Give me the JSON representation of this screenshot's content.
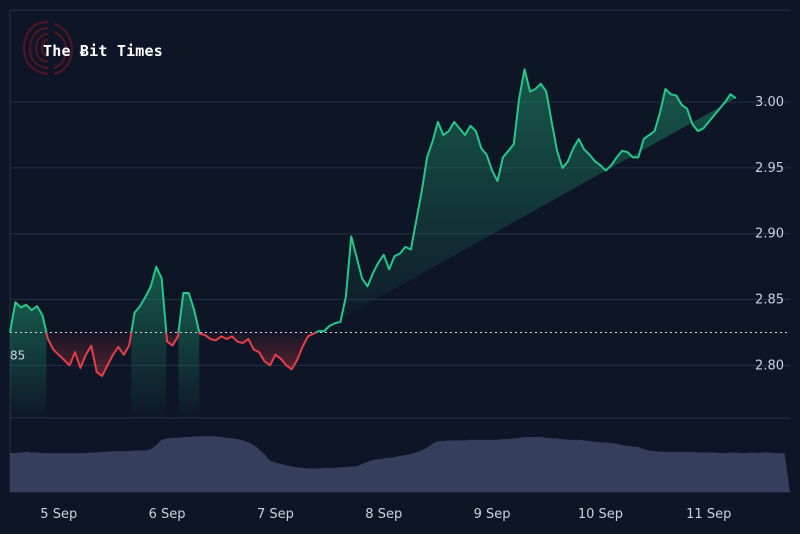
{
  "watermark": {
    "text": "The Ƀit Times"
  },
  "chart_data": {
    "type": "line",
    "title": "",
    "xlabel": "",
    "ylabel": "",
    "baseline": 2.825,
    "baseline_label": "85",
    "ylim": [
      2.76,
      3.07
    ],
    "y_ticks": [
      {
        "value": 2.8,
        "label": "2.80"
      },
      {
        "value": 2.85,
        "label": "2.85"
      },
      {
        "value": 2.9,
        "label": "2.90"
      },
      {
        "value": 2.95,
        "label": "2.95"
      },
      {
        "value": 3.0,
        "label": "3.00"
      }
    ],
    "x_ticks": [
      "5 Sep",
      "6 Sep",
      "7 Sep",
      "8 Sep",
      "9 Sep",
      "10 Sep",
      "11 Sep"
    ],
    "xlim": [
      4.55,
      11.75
    ],
    "colors": {
      "up": "#26c88a",
      "down": "#e5404a",
      "volume": "#3a4263",
      "grid": "#253047",
      "background": "#0e1526"
    },
    "series": [
      {
        "x": [
          4.55,
          4.6,
          4.65,
          4.7,
          4.75,
          4.8,
          4.85,
          4.9,
          4.95,
          5.0,
          5.05,
          5.1,
          5.15,
          5.2,
          5.25,
          5.3,
          5.35,
          5.4,
          5.45,
          5.5,
          5.55,
          5.6,
          5.65,
          5.7,
          5.75,
          5.8,
          5.85,
          5.9,
          5.95,
          6.0,
          6.05,
          6.1,
          6.15,
          6.2,
          6.25,
          6.3,
          6.35,
          6.4,
          6.45,
          6.5,
          6.55,
          6.6,
          6.65,
          6.7,
          6.75,
          6.8,
          6.85,
          6.9,
          6.95,
          7.0,
          7.05,
          7.1,
          7.15,
          7.2,
          7.25,
          7.3,
          7.35,
          7.4,
          7.45,
          7.5,
          7.55,
          7.6,
          7.65,
          7.7,
          7.75,
          7.8,
          7.85,
          7.9,
          7.95,
          8.0,
          8.05,
          8.1,
          8.15,
          8.2,
          8.25,
          8.3,
          8.35,
          8.4,
          8.45,
          8.5,
          8.55,
          8.6,
          8.65,
          8.7,
          8.75,
          8.8,
          8.85,
          8.9,
          8.95,
          9.0,
          9.05,
          9.1,
          9.15,
          9.2,
          9.25,
          9.3,
          9.35,
          9.4,
          9.45,
          9.5,
          9.55,
          9.6,
          9.65,
          9.7,
          9.75,
          9.8,
          9.85,
          9.9,
          9.95,
          10.0,
          10.05,
          10.1,
          10.15,
          10.2,
          10.25,
          10.3,
          10.35,
          10.4,
          10.45,
          10.5,
          10.55,
          10.6,
          10.65,
          10.7,
          10.75,
          10.8,
          10.85,
          10.9,
          10.95,
          11.0,
          11.05,
          11.1,
          11.15,
          11.2,
          11.25,
          11.3,
          11.35,
          11.4,
          11.45,
          11.5,
          11.55,
          11.6,
          11.65,
          11.7,
          11.75
        ],
        "price": [
          2.825,
          2.848,
          2.844,
          2.846,
          2.842,
          2.845,
          2.838,
          2.82,
          2.812,
          2.808,
          2.804,
          2.8,
          2.81,
          2.798,
          2.808,
          2.815,
          2.795,
          2.792,
          2.8,
          2.808,
          2.814,
          2.808,
          2.815,
          2.84,
          2.845,
          2.852,
          2.86,
          2.875,
          2.866,
          2.818,
          2.815,
          2.822,
          2.855,
          2.855,
          2.842,
          2.824,
          2.823,
          2.82,
          2.819,
          2.822,
          2.82,
          2.822,
          2.818,
          2.817,
          2.82,
          2.812,
          2.81,
          2.803,
          2.8,
          2.808,
          2.805,
          2.8,
          2.797,
          2.804,
          2.814,
          2.822,
          2.824,
          2.826,
          2.826,
          2.83,
          2.832,
          2.833,
          2.852,
          2.898,
          2.882,
          2.866,
          2.86,
          2.87,
          2.878,
          2.884,
          2.873,
          2.883,
          2.885,
          2.89,
          2.888,
          2.91,
          2.932,
          2.958,
          2.97,
          2.985,
          2.975,
          2.978,
          2.985,
          2.98,
          2.975,
          2.982,
          2.978,
          2.965,
          2.96,
          2.948,
          2.94,
          2.958,
          2.963,
          2.968,
          3.003,
          3.025,
          3.008,
          3.01,
          3.014,
          3.008,
          2.985,
          2.963,
          2.95,
          2.955,
          2.965,
          2.972,
          2.964,
          2.96,
          2.955,
          2.952,
          2.948,
          2.952,
          2.958,
          2.963,
          2.962,
          2.958,
          2.958,
          2.972,
          2.975,
          2.978,
          2.992,
          3.01,
          3.006,
          3.005,
          2.998,
          2.995,
          2.983,
          2.978,
          2.98,
          2.985,
          2.99,
          2.995,
          3.0,
          3.006,
          3.003
        ]
      }
    ],
    "volume": [
      0.58,
      0.58,
      0.59,
      0.6,
      0.59,
      0.59,
      0.58,
      0.58,
      0.58,
      0.58,
      0.58,
      0.58,
      0.58,
      0.58,
      0.58,
      0.59,
      0.59,
      0.6,
      0.6,
      0.61,
      0.61,
      0.61,
      0.61,
      0.62,
      0.62,
      0.62,
      0.64,
      0.7,
      0.78,
      0.8,
      0.81,
      0.81,
      0.82,
      0.82,
      0.83,
      0.83,
      0.83,
      0.83,
      0.83,
      0.82,
      0.81,
      0.8,
      0.79,
      0.77,
      0.74,
      0.7,
      0.64,
      0.56,
      0.47,
      0.44,
      0.42,
      0.4,
      0.38,
      0.37,
      0.36,
      0.35,
      0.35,
      0.35,
      0.36,
      0.36,
      0.36,
      0.37,
      0.37,
      0.38,
      0.38,
      0.42,
      0.45,
      0.48,
      0.49,
      0.5,
      0.51,
      0.52,
      0.54,
      0.55,
      0.57,
      0.59,
      0.62,
      0.66,
      0.72,
      0.76,
      0.76,
      0.77,
      0.77,
      0.77,
      0.77,
      0.78,
      0.78,
      0.78,
      0.78,
      0.78,
      0.78,
      0.79,
      0.79,
      0.8,
      0.81,
      0.82,
      0.82,
      0.82,
      0.82,
      0.81,
      0.8,
      0.8,
      0.79,
      0.78,
      0.78,
      0.78,
      0.77,
      0.76,
      0.75,
      0.74,
      0.74,
      0.73,
      0.72,
      0.7,
      0.69,
      0.68,
      0.67,
      0.64,
      0.62,
      0.61,
      0.6,
      0.6,
      0.6,
      0.6,
      0.6,
      0.6,
      0.6,
      0.59,
      0.59,
      0.59,
      0.59,
      0.58,
      0.58,
      0.59,
      0.59,
      0.58,
      0.58,
      0.59,
      0.58,
      0.59,
      0.59,
      0.58,
      0.58,
      0.58
    ]
  }
}
